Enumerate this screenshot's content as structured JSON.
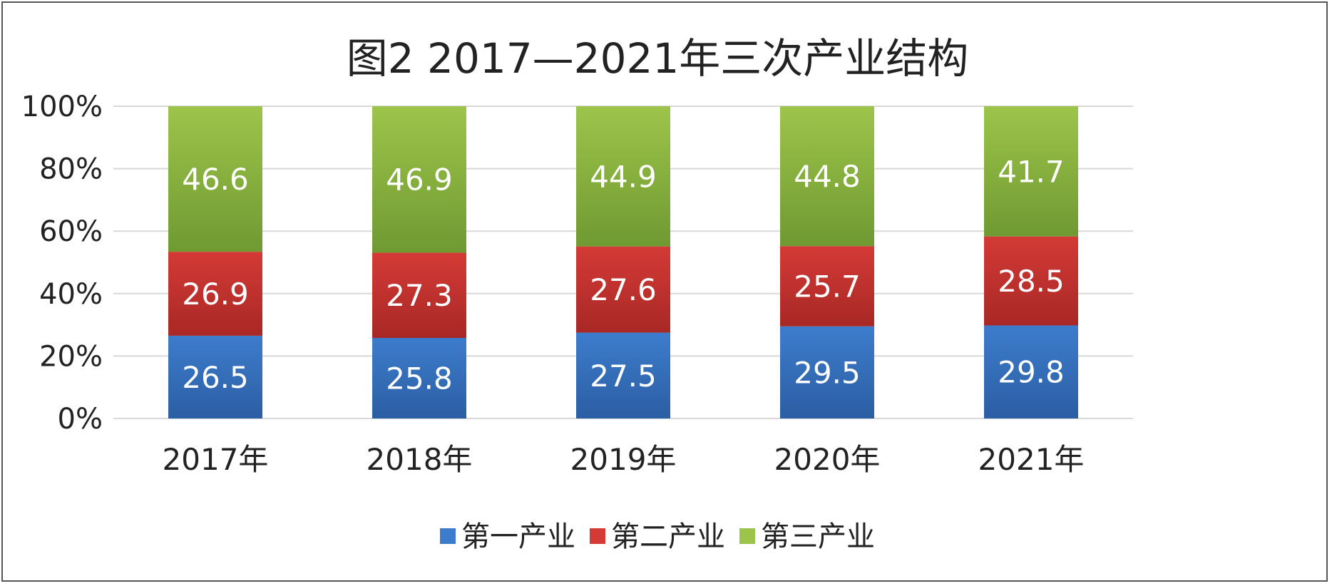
{
  "chart_data": {
    "type": "bar",
    "stacked": true,
    "percent_stacked": true,
    "title": "图2  2017—2021年三次产业结构",
    "categories": [
      "2017年",
      "2018年",
      "2019年",
      "2020年",
      "2021年"
    ],
    "series": [
      {
        "name": "第一产业",
        "values": [
          26.5,
          25.8,
          27.5,
          29.5,
          29.8
        ],
        "color": "#3d7ccc",
        "color_dark": "#2b5ea3"
      },
      {
        "name": "第二产业",
        "values": [
          26.9,
          27.3,
          27.6,
          25.7,
          28.5
        ],
        "color": "#d43a36",
        "color_dark": "#a82825"
      },
      {
        "name": "第三产业",
        "values": [
          46.6,
          46.9,
          44.9,
          44.8,
          41.7
        ],
        "color": "#9dc44a",
        "color_dark": "#6f9a32"
      }
    ],
    "y_ticks": [
      "0%",
      "20%",
      "40%",
      "60%",
      "80%",
      "100%"
    ],
    "ylim": [
      0,
      100
    ],
    "grid": true,
    "legend_position": "bottom"
  }
}
